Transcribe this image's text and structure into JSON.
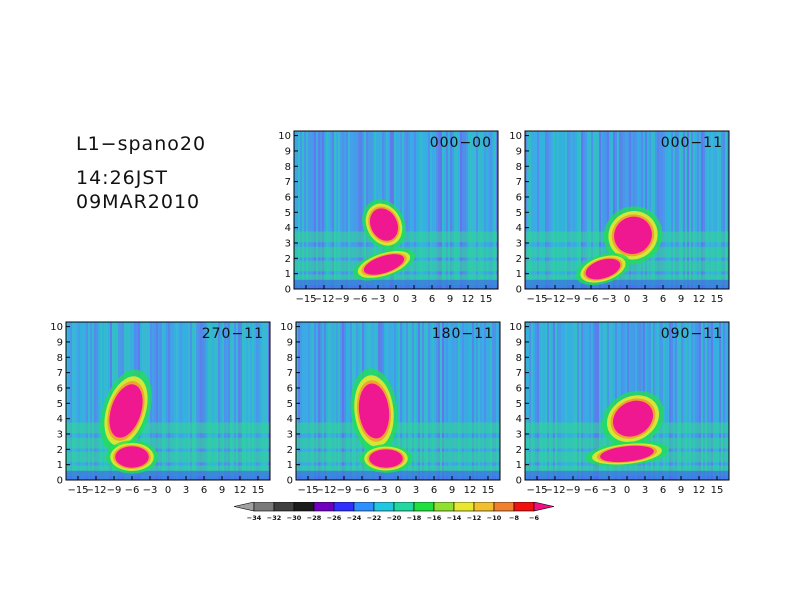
{
  "header": {
    "line1": "L1−spano20",
    "line2": "14:26JST",
    "line3": "09MAR2010"
  },
  "chart_data": {
    "type": "heatmap",
    "x_ticks": [
      "−15",
      "−12",
      "−9",
      "−6",
      "−3",
      "0",
      "3",
      "6",
      "9",
      "12",
      "15"
    ],
    "x_tick_values": [
      -15,
      -12,
      -9,
      -6,
      -3,
      0,
      3,
      6,
      9,
      12,
      15
    ],
    "y_ticks": [
      "0",
      "1",
      "2",
      "3",
      "4",
      "5",
      "6",
      "7",
      "8",
      "9",
      "10"
    ],
    "xlim": [
      -17,
      17
    ],
    "ylim": [
      0,
      10.3
    ],
    "panels": [
      {
        "label": "000−00",
        "blobs": [
          [
            -2,
            4.2,
            2.2,
            1.1,
            0.45
          ],
          [
            -2,
            1.6,
            3.5,
            0.55,
            0.3
          ]
        ]
      },
      {
        "label": "000−11",
        "blobs": [
          [
            1,
            3.5,
            3.2,
            1.2,
            0.6
          ],
          [
            -4,
            1.3,
            3.0,
            0.6,
            0.3
          ]
        ]
      },
      {
        "label": "270−11",
        "blobs": [
          [
            -7,
            4.5,
            2.5,
            1.8,
            -0.3
          ],
          [
            -6,
            1.5,
            2.8,
            0.7,
            0
          ]
        ]
      },
      {
        "label": "180−11",
        "blobs": [
          [
            -4,
            4.5,
            2.5,
            1.8,
            0.1
          ],
          [
            -2,
            1.4,
            2.8,
            0.6,
            0
          ]
        ]
      },
      {
        "label": "090−11",
        "blobs": [
          [
            1,
            4,
            3.5,
            1.1,
            0.5
          ],
          [
            0,
            1.7,
            4.5,
            0.5,
            0.1
          ]
        ]
      }
    ],
    "colorbar": {
      "labels": [
        "−34",
        "−32",
        "−30",
        "−28",
        "−26",
        "−24",
        "−22",
        "−20",
        "−18",
        "−16",
        "−14",
        "−12",
        "−10",
        "−8",
        "−6"
      ],
      "colors": [
        "#a0a0a0",
        "#7a7a7a",
        "#404040",
        "#1c1c1c",
        "#7000c0",
        "#3030ff",
        "#2f8fff",
        "#1fc8e0",
        "#20d8a0",
        "#20e040",
        "#90e030",
        "#e8e830",
        "#f0c030",
        "#f08030",
        "#f01010",
        "#f01080"
      ]
    }
  }
}
